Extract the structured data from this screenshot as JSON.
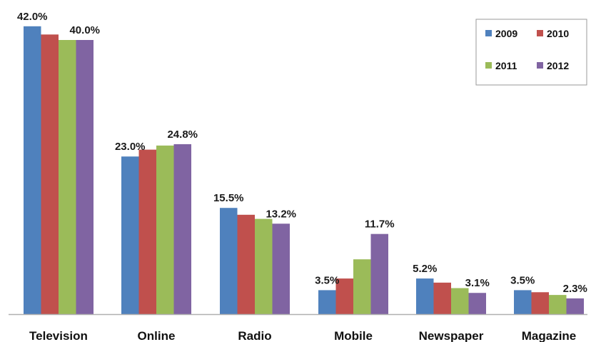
{
  "chart_data": {
    "type": "bar",
    "title": "",
    "xlabel": "",
    "ylabel": "",
    "ylim": [
      0,
      45
    ],
    "grid": false,
    "legend_position": "top-right",
    "categories": [
      "Television",
      "Online",
      "Radio",
      "Mobile",
      "Newspaper",
      "Magazine"
    ],
    "series": [
      {
        "name": "2009",
        "color": "#4f81bd",
        "values": [
          42.0,
          23.0,
          15.5,
          3.5,
          5.2,
          3.5
        ]
      },
      {
        "name": "2010",
        "color": "#c0504d",
        "values": [
          40.8,
          24.0,
          14.5,
          5.2,
          4.6,
          3.2
        ]
      },
      {
        "name": "2011",
        "color": "#9bbb59",
        "values": [
          40.0,
          24.6,
          13.9,
          8.0,
          3.8,
          2.8
        ]
      },
      {
        "name": "2012",
        "color": "#8064a2",
        "values": [
          40.0,
          24.8,
          13.2,
          11.7,
          3.1,
          2.3
        ]
      }
    ],
    "data_labels": [
      {
        "category_index": 0,
        "series_index": 0,
        "text": "42.0%"
      },
      {
        "category_index": 0,
        "series_index": 3,
        "text": "40.0%"
      },
      {
        "category_index": 1,
        "series_index": 0,
        "text": "23.0%"
      },
      {
        "category_index": 1,
        "series_index": 3,
        "text": "24.8%"
      },
      {
        "category_index": 2,
        "series_index": 0,
        "text": "15.5%"
      },
      {
        "category_index": 2,
        "series_index": 3,
        "text": "13.2%"
      },
      {
        "category_index": 3,
        "series_index": 0,
        "text": "3.5%"
      },
      {
        "category_index": 3,
        "series_index": 3,
        "text": "11.7%"
      },
      {
        "category_index": 4,
        "series_index": 0,
        "text": "5.2%"
      },
      {
        "category_index": 4,
        "series_index": 3,
        "text": "3.1%"
      },
      {
        "category_index": 5,
        "series_index": 0,
        "text": "3.5%"
      },
      {
        "category_index": 5,
        "series_index": 3,
        "text": "2.3%"
      }
    ]
  }
}
